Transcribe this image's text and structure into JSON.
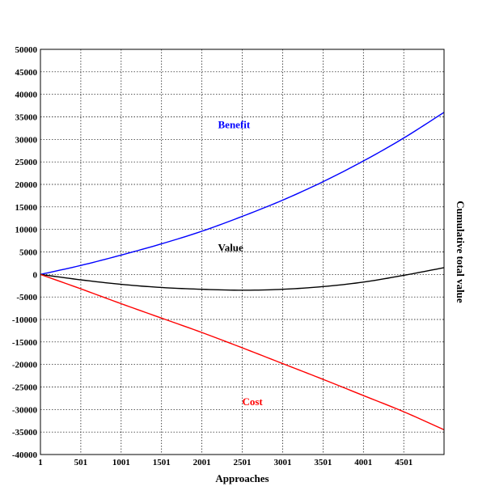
{
  "chart_data": {
    "type": "line",
    "title": "",
    "xlabel": "Approaches",
    "ylabel": "Cumulative total value",
    "xlim": [
      1,
      5000
    ],
    "ylim": [
      -40000,
      50000
    ],
    "x_ticks": [
      1,
      501,
      1001,
      1501,
      2001,
      2501,
      3001,
      3501,
      4001,
      4501
    ],
    "x_tick_labels": [
      "1",
      "501",
      "1001",
      "1501",
      "2001",
      "2501",
      "3001",
      "3501",
      "4001",
      "4501"
    ],
    "y_ticks": [
      50000,
      45000,
      40000,
      35000,
      30000,
      25000,
      20000,
      15000,
      10000,
      5000,
      0,
      -5000,
      -10000,
      -15000,
      -20000,
      -25000,
      -30000,
      -35000,
      -40000
    ],
    "y_tick_labels": [
      "50000",
      "45000",
      "40000",
      "35000",
      "30000",
      "25000",
      "20000",
      "15000",
      "10000",
      "5000",
      "0",
      "-5000",
      "-10000",
      "-15000",
      "-20000",
      "-25000",
      "-30000",
      "-35000",
      "-40000"
    ],
    "grid": true,
    "x": [
      1,
      501,
      1001,
      1501,
      2001,
      2501,
      3001,
      3501,
      4001,
      4501,
      5000
    ],
    "series": [
      {
        "name": "Benefit",
        "color": "#0000ff",
        "label_at": [
          2200,
          32500
        ],
        "values": [
          0,
          2000,
          4300,
          6800,
          9600,
          12900,
          16500,
          20600,
          25200,
          30300,
          36000
        ]
      },
      {
        "name": "Value",
        "color": "#000000",
        "label_at": [
          2200,
          5200
        ],
        "values": [
          0,
          -1200,
          -2200,
          -2900,
          -3300,
          -3500,
          -3300,
          -2700,
          -1700,
          -200,
          1500
        ]
      },
      {
        "name": "Cost",
        "color": "#ff0000",
        "label_at": [
          2500,
          -29000
        ],
        "values": [
          0,
          -3200,
          -6500,
          -9700,
          -12900,
          -16300,
          -19800,
          -23300,
          -26900,
          -30500,
          -34500
        ]
      }
    ]
  }
}
